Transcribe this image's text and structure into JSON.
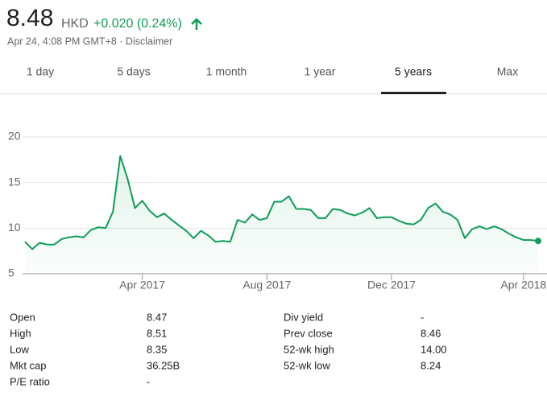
{
  "header": {
    "price": "8.48",
    "currency": "HKD",
    "change": "+0.020 (0.24%)",
    "timestamp": "Apr 24, 4:08 PM GMT+8 · Disclaimer"
  },
  "tabs": [
    "1 day",
    "5 days",
    "1 month",
    "1 year",
    "5 years",
    "Max"
  ],
  "selected_tab": 4,
  "chart_data": {
    "type": "line",
    "color": "#0f9d58",
    "categories": [
      null,
      null,
      null,
      null,
      null,
      null,
      null,
      null,
      null,
      null,
      null,
      null,
      null,
      null,
      null,
      null,
      "Apr 2017",
      null,
      null,
      null,
      null,
      null,
      null,
      null,
      null,
      null,
      null,
      null,
      null,
      null,
      null,
      null,
      null,
      "Aug 2017",
      null,
      null,
      null,
      null,
      null,
      null,
      null,
      null,
      null,
      null,
      null,
      null,
      null,
      null,
      null,
      null,
      "Dec 2017",
      null,
      null,
      null,
      null,
      null,
      null,
      null,
      null,
      null,
      null,
      null,
      null,
      null,
      null,
      null,
      null,
      null,
      "Apr 2018",
      null,
      null
    ],
    "values": [
      8.5,
      7.7,
      8.4,
      8.2,
      8.2,
      8.8,
      9.0,
      9.1,
      9.0,
      9.8,
      10.1,
      10.0,
      11.8,
      17.9,
      15.4,
      12.2,
      13.0,
      11.9,
      11.2,
      11.6,
      10.9,
      10.3,
      9.7,
      8.9,
      9.7,
      9.2,
      8.5,
      8.6,
      8.5,
      10.9,
      10.6,
      11.5,
      10.9,
      11.1,
      12.9,
      12.9,
      13.5,
      12.1,
      12.1,
      12.0,
      11.1,
      11.1,
      12.1,
      12.0,
      11.6,
      11.4,
      11.7,
      12.2,
      11.1,
      11.2,
      11.2,
      10.8,
      10.5,
      10.4,
      10.9,
      12.2,
      12.7,
      11.8,
      11.5,
      10.9,
      8.9,
      9.9,
      10.2,
      9.9,
      10.2,
      9.9,
      9.4,
      9.0,
      8.7,
      8.7,
      8.6
    ],
    "ylim": [
      5,
      20
    ],
    "yticks": [
      5,
      10,
      15,
      20
    ],
    "grid": true
  },
  "stats": {
    "left": [
      [
        "Open",
        "8.47"
      ],
      [
        "High",
        "8.51"
      ],
      [
        "Low",
        "8.35"
      ],
      [
        "Mkt cap",
        "36.25B"
      ],
      [
        "P/E ratio",
        "-"
      ]
    ],
    "right": [
      [
        "Div yield",
        "-"
      ],
      [
        "Prev close",
        "8.46"
      ],
      [
        "52-wk high",
        "14.00"
      ],
      [
        "52-wk low",
        "8.24"
      ]
    ]
  }
}
